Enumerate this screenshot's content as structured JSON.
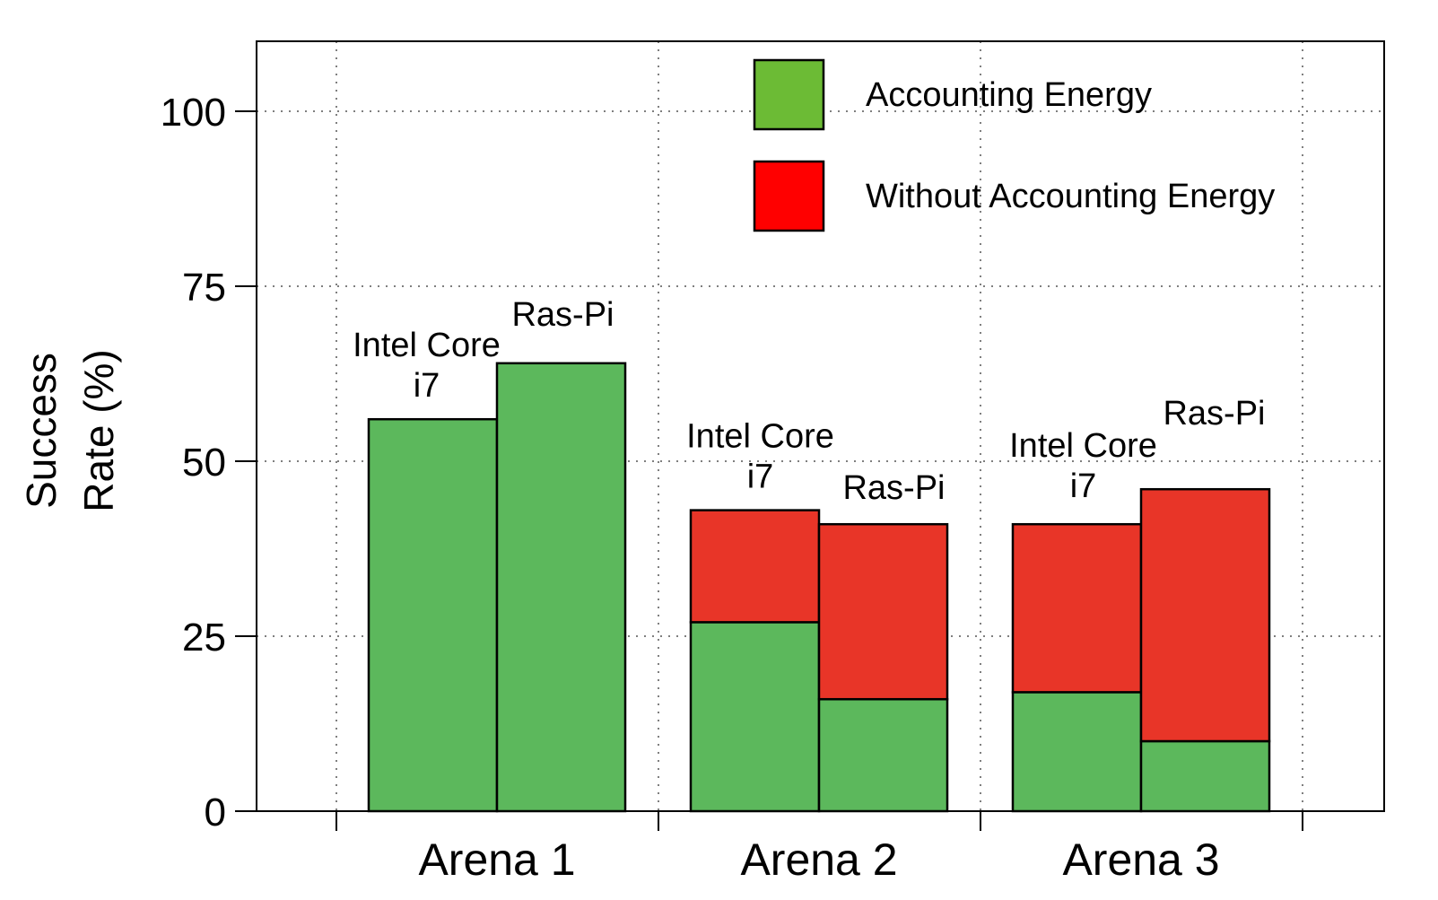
{
  "chart_data": {
    "type": "bar",
    "stacked": true,
    "categories": [
      "Arena 1",
      "Arena 2",
      "Arena 3"
    ],
    "bar_labels": [
      "Intel Core i7",
      "Ras-Pi"
    ],
    "ylabel": "Success Rate (%)",
    "ylabel_lines": [
      "Success",
      "Rate (%)"
    ],
    "ylim": [
      0,
      110
    ],
    "yticks": [
      0,
      25,
      50,
      75,
      100
    ],
    "grid": true,
    "legend_position": "top-right",
    "series": [
      {
        "name": "Accounting Energy",
        "color": "#5cb85c",
        "values": [
          [
            56,
            64
          ],
          [
            27,
            16
          ],
          [
            17,
            10
          ]
        ]
      },
      {
        "name": "Without Accounting Energy",
        "color": "#e83528",
        "values": [
          [
            0,
            0
          ],
          [
            16,
            25
          ],
          [
            24,
            36
          ]
        ]
      }
    ],
    "legend_swatch_colors": [
      "#6cbb35",
      "#ff0000"
    ]
  }
}
